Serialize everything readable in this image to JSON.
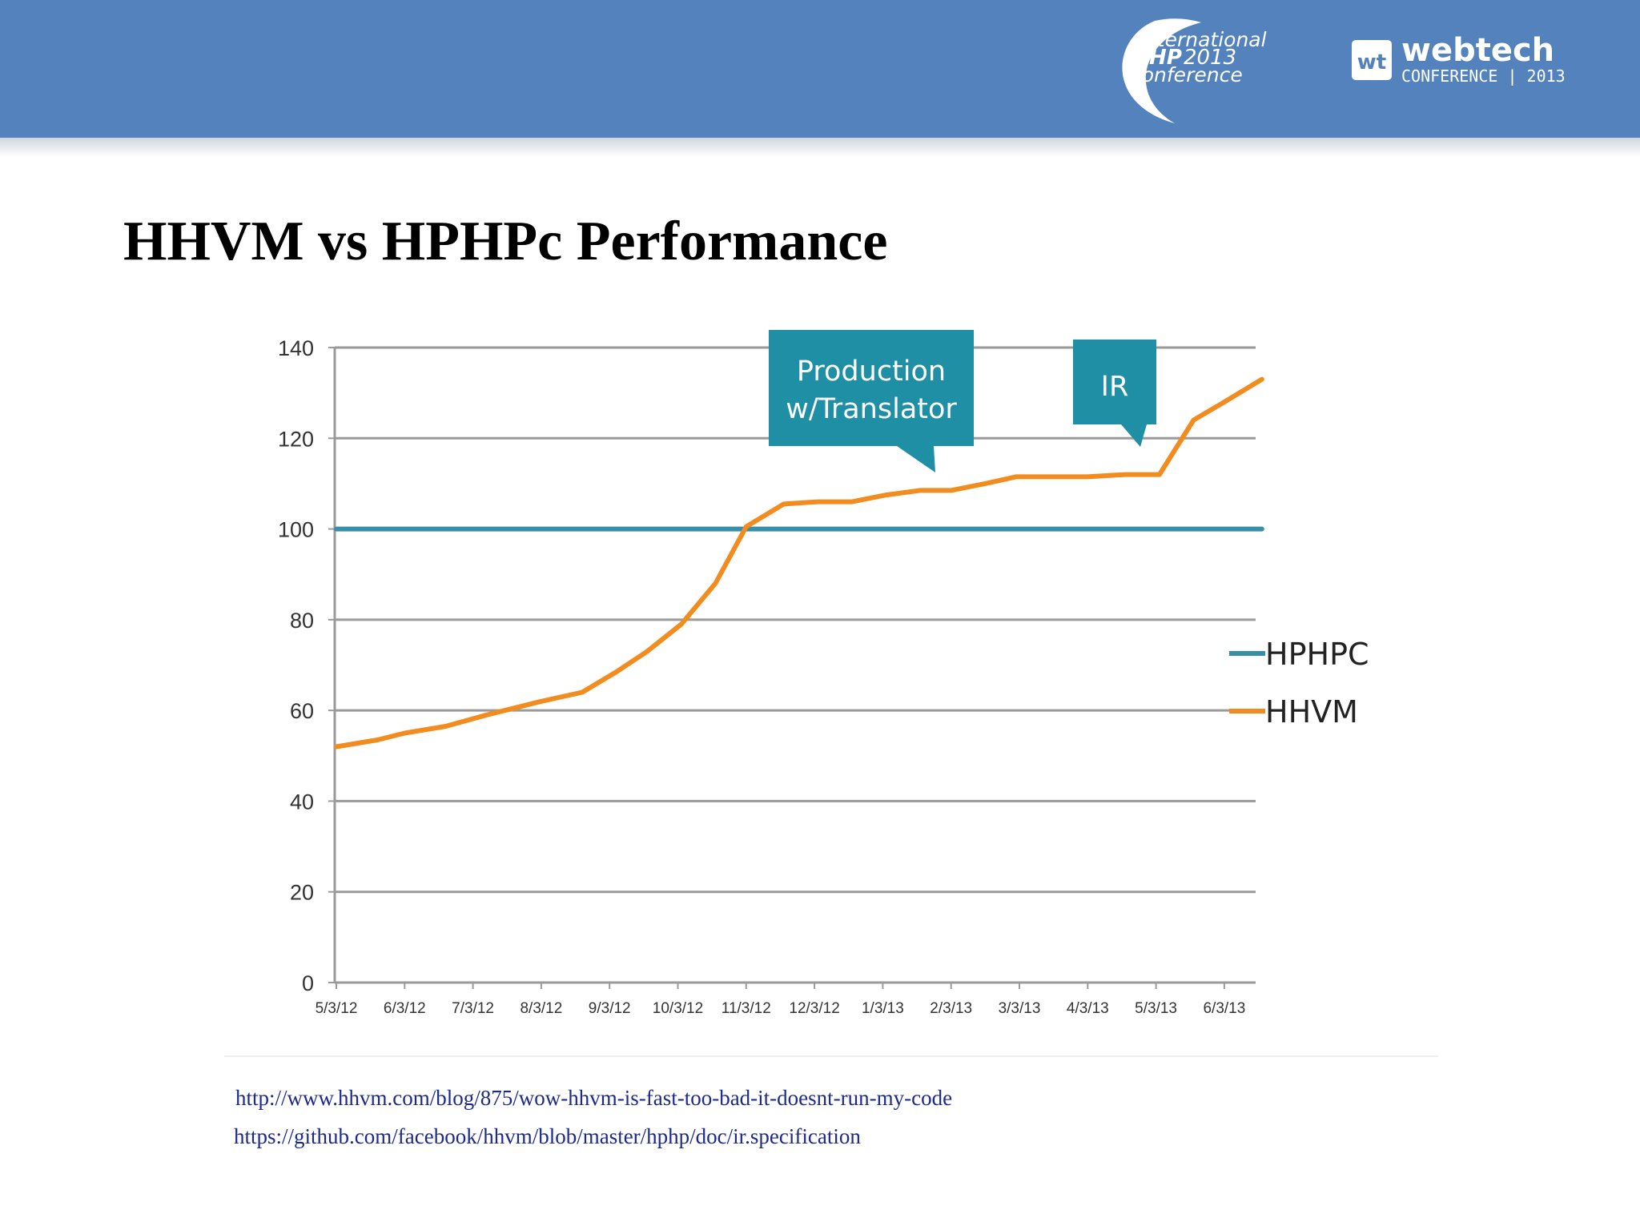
{
  "slide": {
    "title": "HHVM vs HPHPc Performance",
    "references": [
      "http://www.hhvm.com/blog/875/wow-hhvm-is-fast-too-bad-it-doesnt-run-my-code",
      "https://github.com/facebook/hhvm/blob/master/hphp/doc/ir.specification"
    ]
  },
  "header": {
    "background_color": "#5482bd",
    "logo_php": {
      "line1": "international",
      "line2_bold": "PHP",
      "line2_year": "2013",
      "line3": "conference"
    },
    "logo_webtech": {
      "mark": "wt",
      "name": "webtech",
      "line2": "CONFERENCE | 2013"
    }
  },
  "chart_data": {
    "type": "line",
    "x": [
      "5/3/12",
      "6/3/12",
      "7/3/12",
      "8/3/12",
      "9/3/12",
      "10/3/12",
      "11/3/12",
      "12/3/12",
      "1/3/13",
      "2/3/13",
      "3/3/13",
      "4/3/13",
      "5/3/13",
      "6/3/13"
    ],
    "ylim": [
      0,
      140
    ],
    "yticks": [
      0,
      20,
      40,
      60,
      80,
      100,
      120,
      140
    ],
    "grid": true,
    "legend": "right",
    "series": [
      {
        "name": "HPHPC",
        "color": "#3a8fa8",
        "points": [
          [
            0,
            100
          ],
          [
            13.55,
            100
          ]
        ]
      },
      {
        "name": "HHVM",
        "color": "#f28c1e",
        "points": [
          [
            0,
            52
          ],
          [
            0.6,
            53.5
          ],
          [
            1,
            55
          ],
          [
            1.6,
            56.5
          ],
          [
            2.2,
            59
          ],
          [
            3,
            62
          ],
          [
            3.6,
            64
          ],
          [
            4.1,
            68.5
          ],
          [
            4.55,
            73
          ],
          [
            5.05,
            79
          ],
          [
            5.55,
            88
          ],
          [
            6,
            100.5
          ],
          [
            6.55,
            105.5
          ],
          [
            7.05,
            106
          ],
          [
            7.55,
            106
          ],
          [
            8.05,
            107.5
          ],
          [
            8.55,
            108.5
          ],
          [
            9,
            108.5
          ],
          [
            9.5,
            110
          ],
          [
            9.95,
            111.5
          ],
          [
            10.5,
            111.5
          ],
          [
            11,
            111.5
          ],
          [
            11.55,
            112
          ],
          [
            12.05,
            112
          ],
          [
            12.55,
            124
          ],
          [
            13,
            128
          ],
          [
            13.55,
            133
          ]
        ]
      }
    ],
    "annotations": [
      {
        "lines": [
          "Production",
          "w/Translator"
        ],
        "color": "#1e8fa4"
      },
      {
        "lines": [
          "IR"
        ],
        "color": "#1e8fa4"
      }
    ]
  }
}
